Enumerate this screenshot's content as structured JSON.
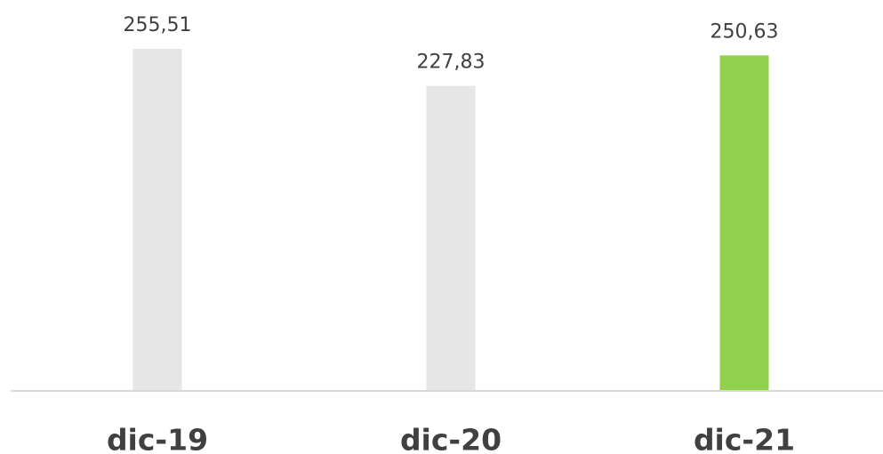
{
  "chart_data": {
    "type": "bar",
    "categories": [
      "dic-19",
      "dic-20",
      "dic-21"
    ],
    "values": [
      255.51,
      227.83,
      250.63
    ],
    "value_labels": [
      "255,51",
      "227,83",
      "250,63"
    ],
    "colors": [
      "#e6e6e6",
      "#e6e6e6",
      "#92d050"
    ]
  }
}
